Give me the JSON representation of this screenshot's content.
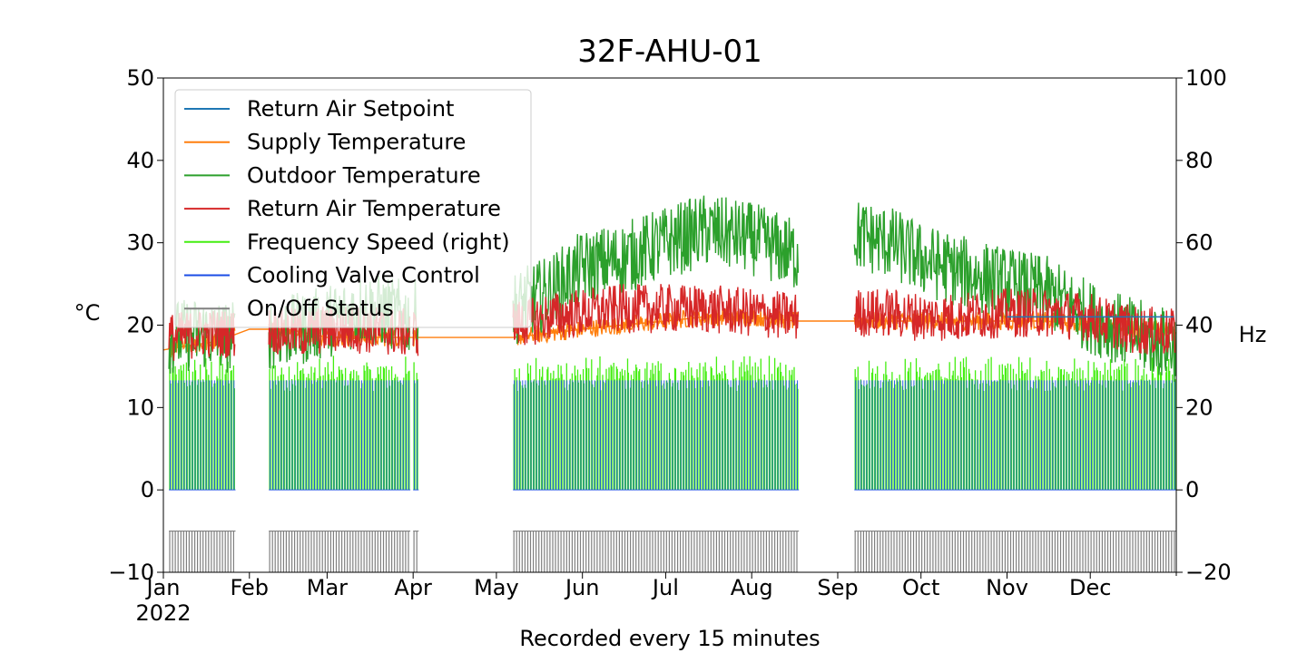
{
  "chart_data": {
    "type": "line",
    "title": "32F-AHU-01",
    "xlabel": "Recorded every 15 minutes",
    "ylabel_left": "°C",
    "ylabel_right": "Hz",
    "ylim_left": [
      -10,
      50
    ],
    "ylim_right": [
      -20,
      100
    ],
    "yticks_left": [
      -10,
      0,
      10,
      20,
      30,
      40,
      50
    ],
    "yticks_right": [
      -20,
      0,
      20,
      40,
      60,
      80,
      100
    ],
    "ytick_labels_left": [
      "−10",
      "0",
      "10",
      "20",
      "30",
      "40",
      "50"
    ],
    "ytick_labels_right": [
      "−20",
      "0",
      "20",
      "40",
      "60",
      "80",
      "100"
    ],
    "xlim": [
      "2022-01-01",
      "2022-12-31"
    ],
    "x_ticks": [
      {
        "date": "2022-01-01",
        "label": "Jan",
        "sublabel": "2022"
      },
      {
        "date": "2022-02-01",
        "label": "Feb"
      },
      {
        "date": "2022-03-01",
        "label": "Mar"
      },
      {
        "date": "2022-04-01",
        "label": "Apr"
      },
      {
        "date": "2022-05-01",
        "label": "May"
      },
      {
        "date": "2022-06-01",
        "label": "Jun"
      },
      {
        "date": "2022-07-01",
        "label": "Jul"
      },
      {
        "date": "2022-08-01",
        "label": "Aug"
      },
      {
        "date": "2022-09-01",
        "label": "Sep"
      },
      {
        "date": "2022-10-01",
        "label": "Oct"
      },
      {
        "date": "2022-11-01",
        "label": "Nov"
      },
      {
        "date": "2022-12-01",
        "label": "Dec"
      }
    ],
    "legend_position": "top-left",
    "grid": false,
    "operating_periods": [
      {
        "start": "2022-01-03",
        "end": "2022-01-26"
      },
      {
        "start": "2022-02-08",
        "end": "2022-03-30"
      },
      {
        "start": "2022-04-01",
        "end": "2022-04-02"
      },
      {
        "start": "2022-05-07",
        "end": "2022-08-17"
      },
      {
        "start": "2022-09-07",
        "end": "2022-12-31"
      }
    ],
    "series": [
      {
        "name": "Return Air Setpoint",
        "axis": "left",
        "color": "#1f77b4",
        "points": [
          [
            "2022-11-01",
            21.0
          ],
          [
            "2022-11-20",
            21.0
          ],
          [
            "2022-12-01",
            21.0
          ],
          [
            "2022-12-31",
            21.0
          ]
        ]
      },
      {
        "name": "Supply Temperature",
        "axis": "left",
        "color": "#ff7f0e",
        "points": [
          [
            "2022-01-01",
            17.0
          ],
          [
            "2022-01-10",
            17.5
          ],
          [
            "2022-01-20",
            18.0
          ],
          [
            "2022-02-01",
            19.5
          ],
          [
            "2022-02-15",
            19.5
          ],
          [
            "2022-03-01",
            18.5
          ],
          [
            "2022-03-15",
            18.5
          ],
          [
            "2022-04-01",
            18.5
          ],
          [
            "2022-04-15",
            18.5
          ],
          [
            "2022-05-07",
            18.5
          ],
          [
            "2022-05-20",
            19.0
          ],
          [
            "2022-06-01",
            19.5
          ],
          [
            "2022-06-15",
            20.0
          ],
          [
            "2022-07-01",
            20.5
          ],
          [
            "2022-07-15",
            21.0
          ],
          [
            "2022-08-01",
            21.0
          ],
          [
            "2022-08-17",
            20.5
          ],
          [
            "2022-09-01",
            20.5
          ],
          [
            "2022-09-15",
            20.5
          ],
          [
            "2022-10-01",
            20.5
          ],
          [
            "2022-10-15",
            20.5
          ],
          [
            "2022-11-01",
            20.5
          ],
          [
            "2022-11-15",
            20.5
          ],
          [
            "2022-12-01",
            20.0
          ],
          [
            "2022-12-15",
            19.5
          ],
          [
            "2022-12-31",
            19.5
          ]
        ]
      },
      {
        "name": "Outdoor Temperature",
        "axis": "left",
        "color": "#2ca02c",
        "points": [
          [
            "2022-01-03",
            18.5
          ],
          [
            "2022-01-15",
            19.0
          ],
          [
            "2022-01-26",
            18.5
          ],
          [
            "2022-02-08",
            19.0
          ],
          [
            "2022-02-20",
            19.5
          ],
          [
            "2022-03-01",
            20.5
          ],
          [
            "2022-03-15",
            22.0
          ],
          [
            "2022-03-30",
            21.0
          ],
          [
            "2022-05-07",
            22.0
          ],
          [
            "2022-05-20",
            24.0
          ],
          [
            "2022-06-01",
            27.0
          ],
          [
            "2022-06-15",
            28.0
          ],
          [
            "2022-07-01",
            30.0
          ],
          [
            "2022-07-15",
            31.5
          ],
          [
            "2022-08-01",
            30.5
          ],
          [
            "2022-08-17",
            28.5
          ],
          [
            "2022-09-07",
            31.0
          ],
          [
            "2022-09-20",
            30.0
          ],
          [
            "2022-10-01",
            28.0
          ],
          [
            "2022-10-15",
            26.5
          ],
          [
            "2022-11-01",
            25.0
          ],
          [
            "2022-11-15",
            24.0
          ],
          [
            "2022-12-01",
            21.0
          ],
          [
            "2022-12-15",
            19.0
          ],
          [
            "2022-12-31",
            17.5
          ]
        ]
      },
      {
        "name": "Return Air Temperature",
        "axis": "left",
        "color": "#d62728",
        "points": [
          [
            "2022-01-03",
            18.5
          ],
          [
            "2022-01-15",
            19.0
          ],
          [
            "2022-01-26",
            19.0
          ],
          [
            "2022-02-08",
            19.5
          ],
          [
            "2022-02-20",
            19.0
          ],
          [
            "2022-03-01",
            19.5
          ],
          [
            "2022-03-15",
            19.5
          ],
          [
            "2022-03-30",
            19.0
          ],
          [
            "2022-05-07",
            20.0
          ],
          [
            "2022-05-20",
            21.0
          ],
          [
            "2022-06-01",
            21.5
          ],
          [
            "2022-06-15",
            22.0
          ],
          [
            "2022-07-01",
            22.0
          ],
          [
            "2022-07-15",
            22.0
          ],
          [
            "2022-08-01",
            21.5
          ],
          [
            "2022-08-17",
            21.0
          ],
          [
            "2022-09-07",
            21.5
          ],
          [
            "2022-09-20",
            21.5
          ],
          [
            "2022-10-01",
            21.0
          ],
          [
            "2022-10-15",
            21.0
          ],
          [
            "2022-11-01",
            21.5
          ],
          [
            "2022-11-15",
            21.5
          ],
          [
            "2022-12-01",
            21.0
          ],
          [
            "2022-12-15",
            19.5
          ],
          [
            "2022-12-31",
            19.0
          ]
        ]
      },
      {
        "name": "Frequency Speed (right)",
        "axis": "right",
        "color": "#44ee11",
        "on_level": 27,
        "off_level": 0
      },
      {
        "name": "Cooling Valve Control",
        "axis": "left",
        "color": "#1b4de6",
        "on_level": 13.3,
        "off_level": 0
      },
      {
        "name": "On/Off Status",
        "axis": "left",
        "color": "#808080",
        "on_level": -5,
        "off_level": -10
      }
    ]
  }
}
